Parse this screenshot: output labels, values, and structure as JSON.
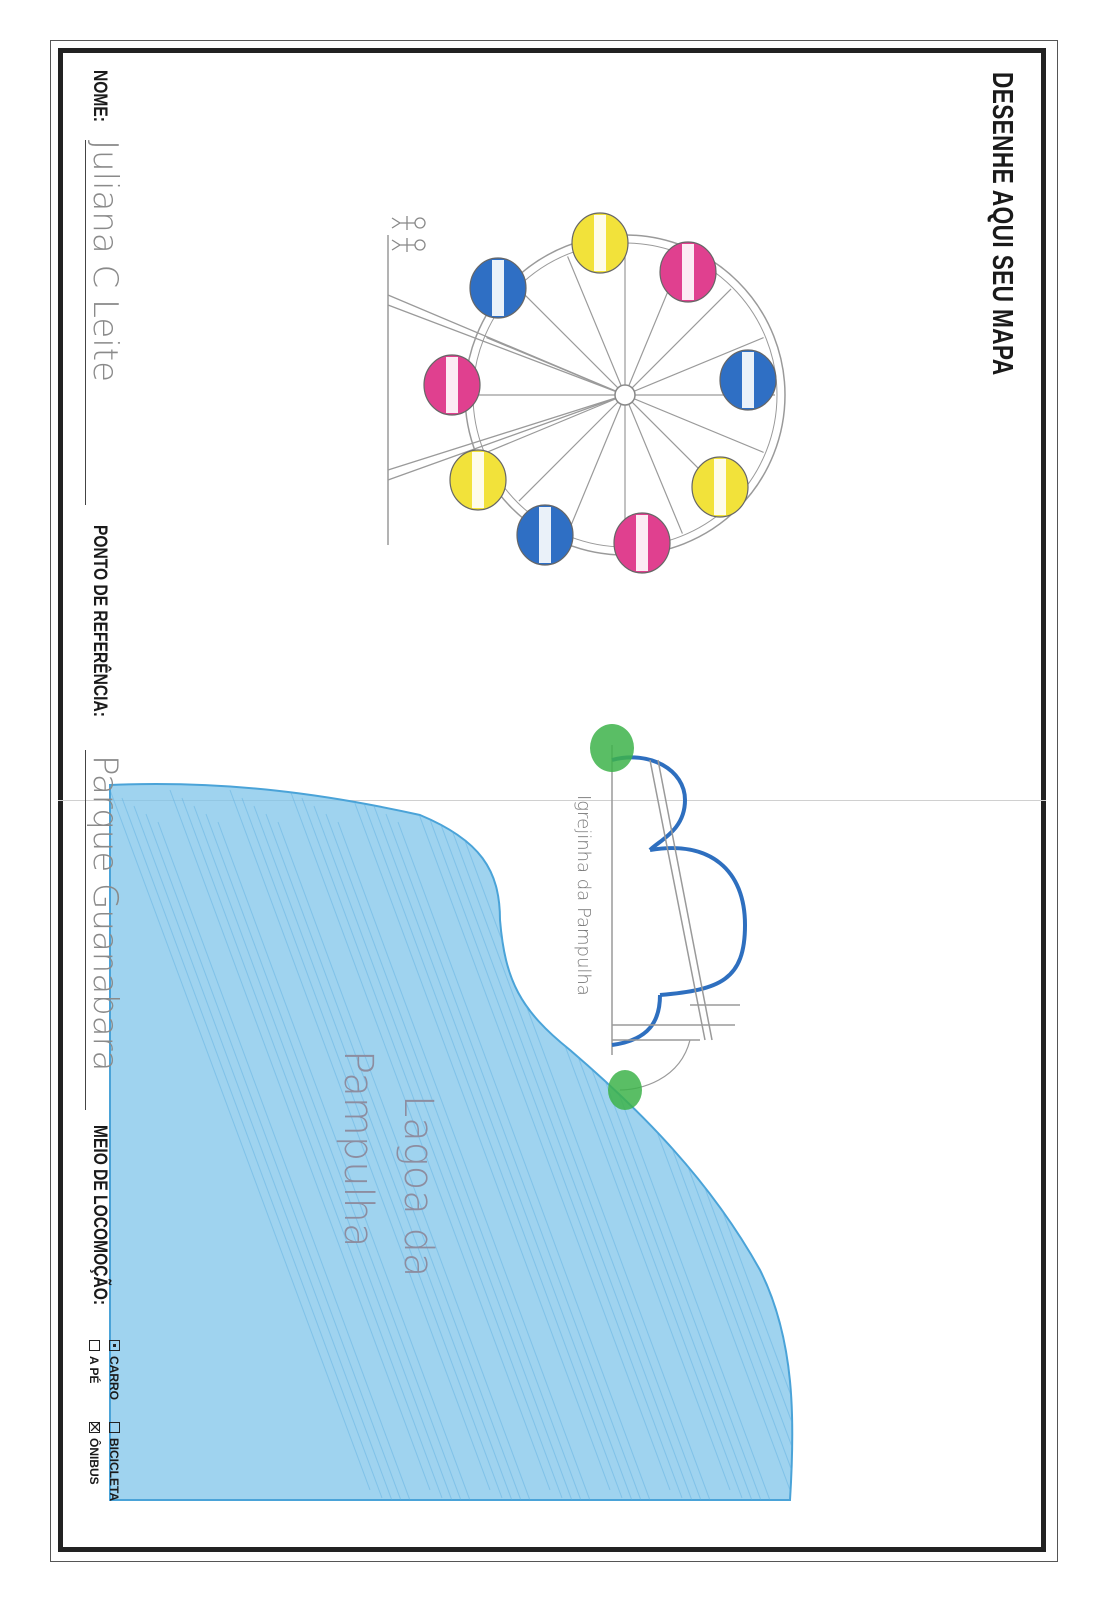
{
  "worksheet": {
    "title": "DESENHE AQUI SEU MAPA",
    "name_label": "NOME:",
    "name_value": "Juliana C Leite",
    "reference_label": "PONTO DE REFERÊNCIA:",
    "reference_value": "Parque Guanabara",
    "transport_label": "MEIO DE LOCOMOÇÃO:",
    "transport_options": [
      {
        "label": "CARRO",
        "checked": true
      },
      {
        "label": "BICICLETA",
        "checked": false
      },
      {
        "label": "A PÉ",
        "checked": false
      },
      {
        "label": "ÔNIBUS",
        "checked": true
      }
    ]
  },
  "drawing": {
    "church_caption": "Igrejinha da Pampulha",
    "lake_caption_line1": "Lagoa da",
    "lake_caption_line2": "Pampulha",
    "colors": {
      "lake": "#7fc4ea",
      "lake_edge": "#4aa3d8",
      "church": "#2e6fbf",
      "tree": "#3db34a",
      "gondola_yellow": "#f2e23a",
      "gondola_pink": "#e0408f",
      "gondola_blue": "#2f6fc4",
      "pencil": "#9a9a9a"
    }
  }
}
